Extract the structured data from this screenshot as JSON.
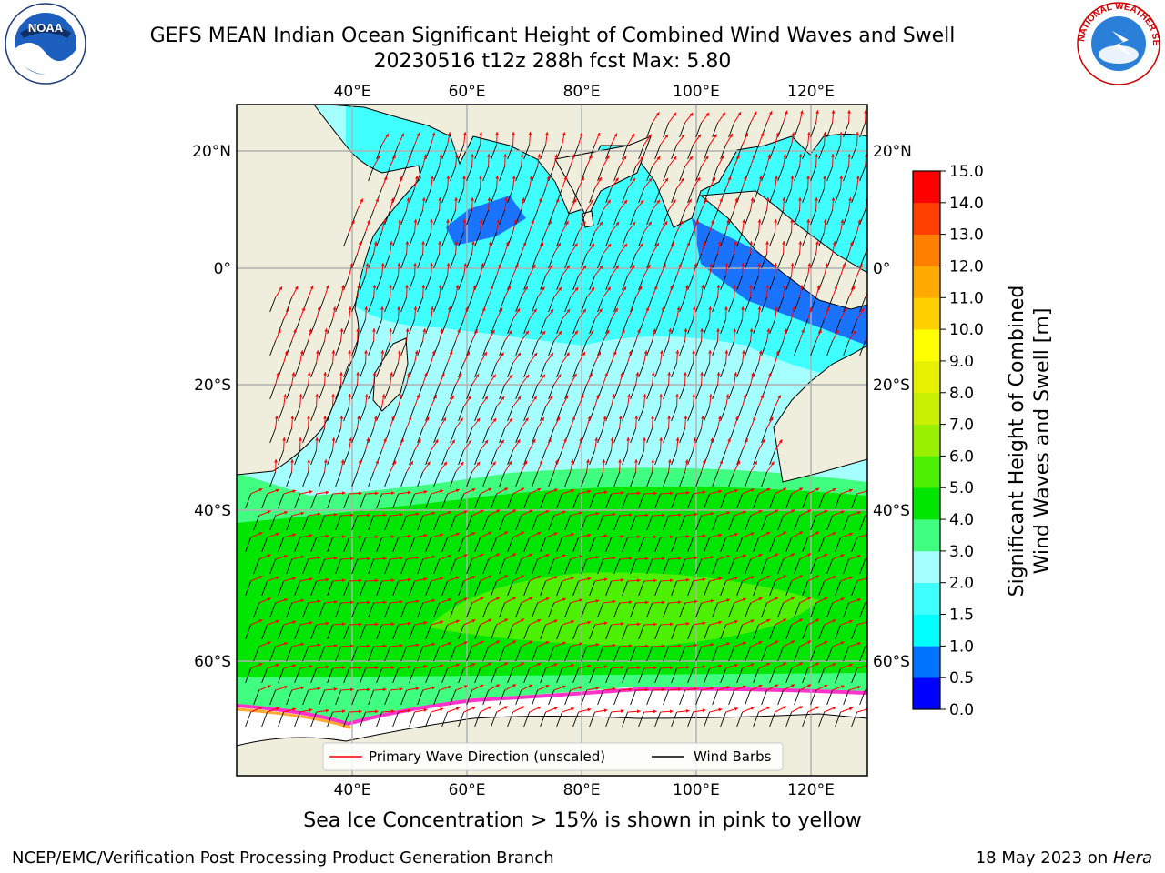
{
  "title": {
    "line1": "GEFS MEAN Indian Ocean Significant Height of Combined Wind Waves and Swell",
    "line2": "20230516 t12z 288h fcst   Max: 5.80"
  },
  "logos": {
    "left": {
      "text": "NOAA",
      "icon": "noaa-logo"
    },
    "right": {
      "text": "NATIONAL WEATHER SERVICE",
      "icon": "nws-logo"
    }
  },
  "map": {
    "lon_ticks": [
      "40°E",
      "60°E",
      "80°E",
      "100°E",
      "120°E"
    ],
    "lat_ticks": [
      "20°N",
      "0°",
      "20°S",
      "40°S",
      "60°S"
    ],
    "colors": {
      "land": "#efeedc",
      "ice": "#ffffff",
      "barb": "#000000",
      "wave_arrow": "#ff0000"
    },
    "legend": {
      "wave_label": "Primary Wave Direction (unscaled)",
      "barb_label": "Wind Barbs"
    }
  },
  "colorbar": {
    "title_line1": "Significant Height of Combined",
    "title_line2": "Wind Waves and Swell [m]",
    "ticks": [
      "0.0",
      "0.5",
      "1.0",
      "1.5",
      "2.0",
      "3.0",
      "4.0",
      "5.0",
      "6.0",
      "7.0",
      "8.0",
      "9.0",
      "10.0",
      "11.0",
      "12.0",
      "13.0",
      "14.0",
      "15.0"
    ],
    "colors": [
      "#0000ff",
      "#0073ff",
      "#00ffff",
      "#40ffff",
      "#a6ffff",
      "#40ff80",
      "#00e600",
      "#4cf000",
      "#99f000",
      "#c8f000",
      "#e6f000",
      "#ffff00",
      "#ffd000",
      "#ffaa00",
      "#ff8000",
      "#ff4000",
      "#ff0000"
    ]
  },
  "caption": "Sea Ice Concentration > 15% is shown in pink to yellow",
  "footer": {
    "left": "NCEP/EMC/Verification Post Processing Product Generation Branch",
    "right_prefix": "18 May 2023 on ",
    "right_italic": "Hera"
  }
}
